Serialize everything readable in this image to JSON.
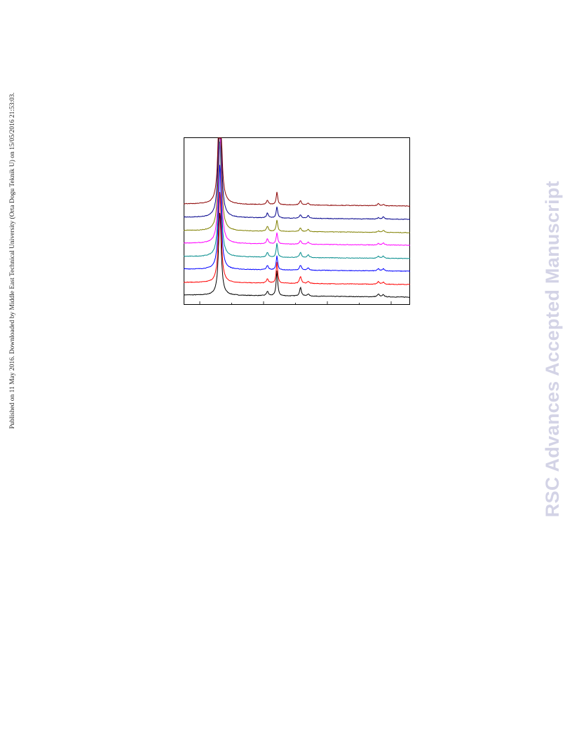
{
  "page": {
    "side_note": "Published on 11 May 2016. Downloaded by Middle East Technical University (Orta Dogu Teknik U) on 15/05/2016 21:53:03.",
    "watermark": "RSC Advances Accepted Manuscript"
  },
  "chart_data": {
    "type": "line",
    "title": "",
    "xlabel": "",
    "ylabel": "",
    "x_ticks": 7,
    "grid": false,
    "legend": "none",
    "series": [
      {
        "color": "#000000",
        "baseline": 0,
        "peaks": [
          [
            0.16,
            118
          ],
          [
            0.37,
            6
          ],
          [
            0.412,
            36
          ],
          [
            0.516,
            12
          ],
          [
            0.55,
            3
          ],
          [
            0.86,
            4
          ],
          [
            0.882,
            3
          ]
        ]
      },
      {
        "color": "#ff0000",
        "baseline": 18,
        "peaks": [
          [
            0.16,
            130
          ],
          [
            0.37,
            6
          ],
          [
            0.412,
            30
          ],
          [
            0.516,
            10
          ],
          [
            0.55,
            3
          ],
          [
            0.86,
            4
          ],
          [
            0.882,
            3
          ]
        ]
      },
      {
        "color": "#0000ff",
        "baseline": 37,
        "peaks": [
          [
            0.16,
            150
          ],
          [
            0.37,
            6
          ],
          [
            0.412,
            20
          ],
          [
            0.516,
            7
          ],
          [
            0.55,
            3
          ],
          [
            0.86,
            3
          ],
          [
            0.882,
            3
          ]
        ]
      },
      {
        "color": "#008b8b",
        "baseline": 55,
        "peaks": [
          [
            0.16,
            165
          ],
          [
            0.37,
            7
          ],
          [
            0.412,
            20
          ],
          [
            0.516,
            7
          ],
          [
            0.55,
            4
          ],
          [
            0.86,
            3
          ],
          [
            0.882,
            3
          ]
        ]
      },
      {
        "color": "#ff00ff",
        "baseline": 74,
        "peaks": [
          [
            0.16,
            178
          ],
          [
            0.37,
            7
          ],
          [
            0.412,
            16
          ],
          [
            0.516,
            5
          ],
          [
            0.55,
            3
          ],
          [
            0.86,
            2
          ],
          [
            0.882,
            3
          ]
        ]
      },
      {
        "color": "#808000",
        "baseline": 92,
        "peaks": [
          [
            0.16,
            190
          ],
          [
            0.37,
            7
          ],
          [
            0.412,
            16
          ],
          [
            0.516,
            5
          ],
          [
            0.55,
            3
          ],
          [
            0.86,
            2
          ],
          [
            0.882,
            3
          ]
        ]
      },
      {
        "color": "#00008b",
        "baseline": 111,
        "peaks": [
          [
            0.16,
            200
          ],
          [
            0.37,
            7
          ],
          [
            0.412,
            16
          ],
          [
            0.516,
            5
          ],
          [
            0.55,
            4
          ],
          [
            0.86,
            2
          ],
          [
            0.882,
            3
          ]
        ]
      },
      {
        "color": "#8b0000",
        "baseline": 130,
        "peaks": [
          [
            0.16,
            212
          ],
          [
            0.37,
            6
          ],
          [
            0.412,
            18
          ],
          [
            0.516,
            6
          ],
          [
            0.55,
            3
          ],
          [
            0.86,
            3
          ],
          [
            0.882,
            2
          ]
        ]
      }
    ]
  }
}
